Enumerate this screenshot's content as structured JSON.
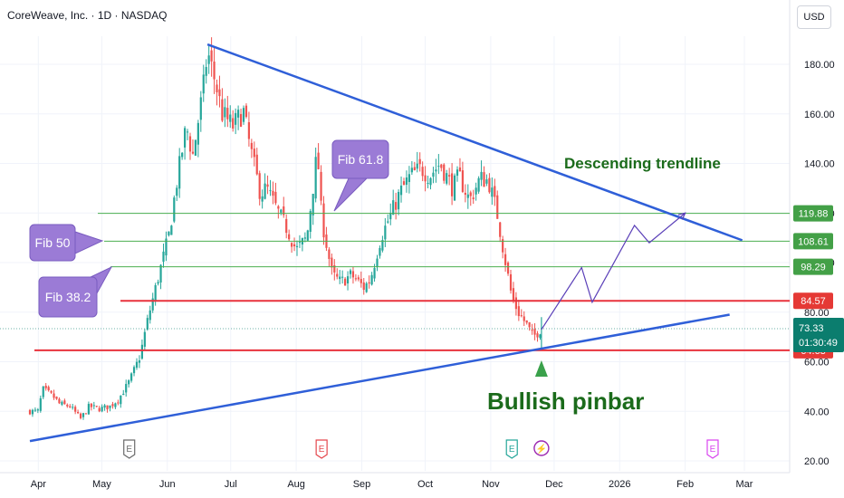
{
  "header": {
    "symbol_title": "CoreWeave, Inc. · 1D · NASDAQ",
    "currency": "USD"
  },
  "colors": {
    "up": "#26a69a",
    "down": "#ef5350",
    "trendline": "#2f5fd8",
    "support": "#e8323c",
    "fib": "#4caf50",
    "callout_fill": "#9b7bd6",
    "annotation_green": "#1b6b1b",
    "path": "#5a3fb8",
    "last_price": "#0b7d6e"
  },
  "chart_data": {
    "type": "candlestick",
    "ylim": [
      20,
      190
    ],
    "y_ticks": [
      20,
      40,
      60,
      80,
      100,
      120,
      140,
      160,
      180
    ],
    "y_tick_labels": [
      "20.00",
      "40.00",
      "60.00",
      "80.00",
      "100.00",
      "120.00",
      "140.00",
      "160.00",
      "180.00"
    ],
    "x_labels": [
      {
        "label": "Apr",
        "date": "2025-04-01"
      },
      {
        "label": "May",
        "date": "2025-05-01"
      },
      {
        "label": "Jun",
        "date": "2025-06-01"
      },
      {
        "label": "Jul",
        "date": "2025-07-01"
      },
      {
        "label": "Aug",
        "date": "2025-08-01"
      },
      {
        "label": "Sep",
        "date": "2025-09-01"
      },
      {
        "label": "Oct",
        "date": "2025-10-01"
      },
      {
        "label": "Nov",
        "date": "2025-11-01"
      },
      {
        "label": "Dec",
        "date": "2025-12-01"
      },
      {
        "label": "2026",
        "date": "2026-01-01"
      },
      {
        "label": "Feb",
        "date": "2026-02-01"
      },
      {
        "label": "Mar",
        "date": "2026-03-01"
      }
    ],
    "close_path": [
      [
        "2025-03-28",
        40
      ],
      [
        "2025-04-01",
        40
      ],
      [
        "2025-04-03",
        49
      ],
      [
        "2025-04-08",
        46
      ],
      [
        "2025-04-11",
        43
      ],
      [
        "2025-04-16",
        42
      ],
      [
        "2025-04-21",
        37
      ],
      [
        "2025-04-25",
        42
      ],
      [
        "2025-04-30",
        41
      ],
      [
        "2025-05-05",
        42
      ],
      [
        "2025-05-09",
        45
      ],
      [
        "2025-05-14",
        52
      ],
      [
        "2025-05-19",
        62
      ],
      [
        "2025-05-23",
        78
      ],
      [
        "2025-05-28",
        95
      ],
      [
        "2025-06-02",
        112
      ],
      [
        "2025-06-05",
        130
      ],
      [
        "2025-06-10",
        155
      ],
      [
        "2025-06-13",
        143
      ],
      [
        "2025-06-18",
        170
      ],
      [
        "2025-06-20",
        185
      ],
      [
        "2025-06-24",
        172
      ],
      [
        "2025-06-27",
        160
      ],
      [
        "2025-07-02",
        155
      ],
      [
        "2025-07-07",
        161
      ],
      [
        "2025-07-10",
        147
      ],
      [
        "2025-07-15",
        128
      ],
      [
        "2025-07-18",
        130
      ],
      [
        "2025-07-23",
        121
      ],
      [
        "2025-07-28",
        113
      ],
      [
        "2025-08-01",
        105
      ],
      [
        "2025-08-06",
        110
      ],
      [
        "2025-08-11",
        145
      ],
      [
        "2025-08-13",
        118
      ],
      [
        "2025-08-18",
        95
      ],
      [
        "2025-08-22",
        92
      ],
      [
        "2025-08-27",
        95
      ],
      [
        "2025-09-02",
        90
      ],
      [
        "2025-09-05",
        93
      ],
      [
        "2025-09-10",
        110
      ],
      [
        "2025-09-15",
        120
      ],
      [
        "2025-09-19",
        128
      ],
      [
        "2025-09-24",
        135
      ],
      [
        "2025-09-29",
        138
      ],
      [
        "2025-10-03",
        135
      ],
      [
        "2025-10-08",
        140
      ],
      [
        "2025-10-14",
        130
      ],
      [
        "2025-10-17",
        135
      ],
      [
        "2025-10-22",
        125
      ],
      [
        "2025-10-27",
        134
      ],
      [
        "2025-10-31",
        133
      ],
      [
        "2025-11-04",
        120
      ],
      [
        "2025-11-07",
        105
      ],
      [
        "2025-11-11",
        86
      ],
      [
        "2025-11-14",
        80
      ],
      [
        "2025-11-18",
        75
      ],
      [
        "2025-11-21",
        70
      ],
      [
        "2025-11-25",
        73.33
      ]
    ],
    "horizontal_levels": [
      {
        "value": 119.88,
        "label": "119.88",
        "kind": "fib"
      },
      {
        "value": 108.61,
        "label": "108.61",
        "kind": "fib"
      },
      {
        "value": 98.29,
        "label": "98.29",
        "kind": "fib"
      },
      {
        "value": 84.57,
        "label": "84.57",
        "kind": "support"
      },
      {
        "value": 64.63,
        "label": "64.63",
        "kind": "support"
      }
    ],
    "last_price": {
      "value": 73.33,
      "label": "73.33",
      "countdown": "01:30:49"
    },
    "trendlines": [
      {
        "name": "descending",
        "from": [
          "2025-06-20",
          188
        ],
        "to": [
          "2026-02-28",
          109
        ]
      },
      {
        "name": "ascending",
        "from": [
          "2025-03-28",
          28
        ],
        "to": [
          "2026-02-22",
          79
        ]
      }
    ],
    "projection": [
      [
        "2025-11-25",
        73
      ],
      [
        "2025-12-14",
        98
      ],
      [
        "2025-12-19",
        84
      ],
      [
        "2026-01-08",
        115
      ],
      [
        "2026-01-15",
        108
      ],
      [
        "2026-02-01",
        120
      ]
    ],
    "annotations": [
      {
        "text": "Fib 61.8",
        "kind": "callout"
      },
      {
        "text": "Fib 50",
        "kind": "callout"
      },
      {
        "text": "Fib 38.2",
        "kind": "callout"
      },
      {
        "text": "Descending trendline",
        "kind": "label"
      },
      {
        "text": "Bullish pinbar",
        "kind": "label"
      }
    ],
    "event_markers": [
      {
        "label": "E",
        "date": "2025-05-14",
        "color": "#6b6b6b"
      },
      {
        "label": "E",
        "date": "2025-08-13",
        "color": "#e5484d"
      },
      {
        "label": "E",
        "date": "2025-11-11",
        "color": "#26a69a"
      },
      {
        "label": "⚡",
        "date": "2025-11-25",
        "color": "#9c27b0"
      },
      {
        "label": "E",
        "date": "2026-02-14",
        "color": "#d946ef"
      }
    ]
  }
}
